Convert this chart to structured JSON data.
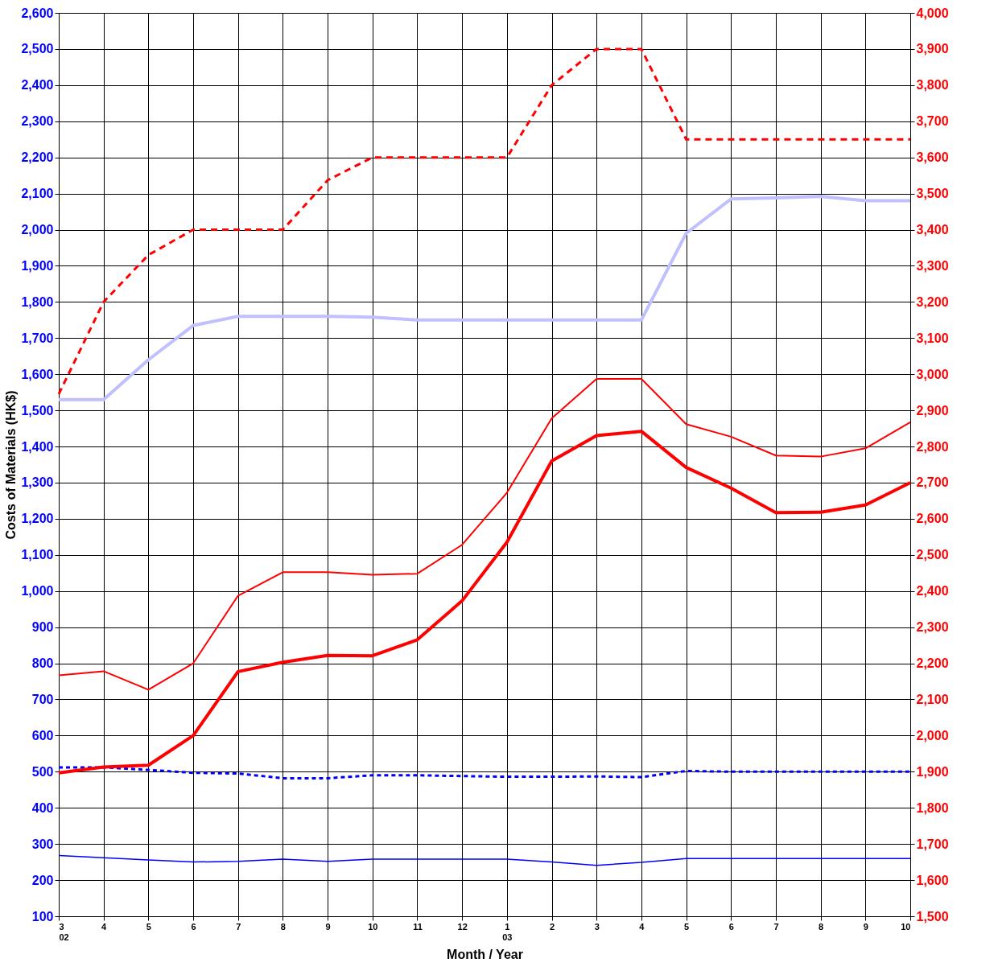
{
  "chart_data": {
    "type": "line",
    "xlabel": "Month / Year",
    "ylabel": "Costs of Materials (HK$)",
    "categories": [
      "3\n02",
      "4",
      "5",
      "6",
      "7",
      "8",
      "9",
      "10",
      "11",
      "12",
      "1\n03",
      "2",
      "3",
      "4",
      "5",
      "6",
      "7",
      "8",
      "9",
      "10"
    ],
    "ylim": [
      100,
      2600
    ],
    "yticks": [
      100,
      200,
      300,
      400,
      500,
      600,
      700,
      800,
      900,
      {
        "value": 1000,
        "label": "1,000"
      },
      {
        "value": 1100,
        "label": "1,100"
      },
      {
        "value": 1200,
        "label": "1,200"
      },
      {
        "value": 1300,
        "label": "1,300"
      },
      {
        "value": 1400,
        "label": "1,400"
      },
      {
        "value": 1500,
        "label": "1,500"
      },
      {
        "value": 1600,
        "label": "1,600"
      },
      {
        "value": 1700,
        "label": "1,700"
      },
      {
        "value": 1800,
        "label": "1,800"
      },
      {
        "value": 1900,
        "label": "1,900"
      },
      {
        "value": 2000,
        "label": "2,000"
      },
      {
        "value": 2100,
        "label": "2,100"
      },
      {
        "value": 2200,
        "label": "2,200"
      },
      {
        "value": 2300,
        "label": "2,300"
      },
      {
        "value": 2400,
        "label": "2,400"
      },
      {
        "value": 2500,
        "label": "2,500"
      },
      {
        "value": 2600,
        "label": "2,600"
      }
    ],
    "y2lim": [
      1500,
      4000
    ],
    "y2ticks": [
      {
        "value": 1500,
        "label": "1,500"
      },
      {
        "value": 1600,
        "label": "1,600"
      },
      {
        "value": 1700,
        "label": "1,700"
      },
      {
        "value": 1800,
        "label": "1,800"
      },
      {
        "value": 1900,
        "label": "1,900"
      },
      {
        "value": 2000,
        "label": "2,000"
      },
      {
        "value": 2100,
        "label": "2,100"
      },
      {
        "value": 2200,
        "label": "2,200"
      },
      {
        "value": 2300,
        "label": "2,300"
      },
      {
        "value": 2400,
        "label": "2,400"
      },
      {
        "value": 2500,
        "label": "2,500"
      },
      {
        "value": 2600,
        "label": "2,600"
      },
      {
        "value": 2700,
        "label": "2,700"
      },
      {
        "value": 2800,
        "label": "2,800"
      },
      {
        "value": 2900,
        "label": "2,900"
      },
      {
        "value": 3000,
        "label": "3,000"
      },
      {
        "value": 3100,
        "label": "3,100"
      },
      {
        "value": 3200,
        "label": "3,200"
      },
      {
        "value": 3300,
        "label": "3,300"
      },
      {
        "value": 3400,
        "label": "3,400"
      },
      {
        "value": 3500,
        "label": "3,500"
      },
      {
        "value": 3600,
        "label": "3,600"
      },
      {
        "value": 3700,
        "label": "3,700"
      },
      {
        "value": 3800,
        "label": "3,800"
      },
      {
        "value": 3900,
        "label": "3,900"
      },
      {
        "value": 4000,
        "label": "4,000"
      }
    ],
    "grid": true,
    "marker": "none",
    "series": [
      {
        "color": "#ff0000",
        "axis": "y2",
        "line_style": "dashed",
        "values": [
          2945,
          3200,
          3330,
          3400,
          3400,
          3400,
          3537,
          3600,
          3600,
          3600,
          3600,
          3800,
          3900,
          3900,
          3650,
          3650,
          3650,
          3650,
          3650,
          3650
        ]
      },
      {
        "color": "#c0c0ff",
        "line_style": "solid",
        "values": [
          1530,
          1530,
          1640,
          1735,
          1760,
          1760,
          1760,
          1758,
          1750,
          1750,
          1750,
          1750,
          1750,
          1750,
          1990,
          2085,
          2088,
          2092,
          2080,
          2080
        ]
      },
      {
        "color": "#ff0000",
        "axis": "y2",
        "line_style": "solid",
        "values": [
          2167,
          2178,
          2127,
          2200,
          2387,
          2452,
          2452,
          2445,
          2448,
          2528,
          2672,
          2878,
          2987,
          2987,
          2862,
          2827,
          2775,
          2772,
          2795,
          2867
        ]
      },
      {
        "color": "#ff0000",
        "axis": "y2",
        "line_style": "solid",
        "values": [
          1897,
          1913,
          1918,
          2000,
          2177,
          2203,
          2222,
          2221,
          2265,
          2373,
          2535,
          2760,
          2830,
          2842,
          2742,
          2685,
          2617,
          2618,
          2638,
          2700
        ]
      },
      {
        "color": "#0000ff",
        "line_style": "dotted",
        "values": [
          512,
          512,
          505,
          497,
          495,
          482,
          482,
          490,
          490,
          488,
          486,
          486,
          487,
          485,
          502,
          500,
          500,
          500,
          500,
          500
        ]
      },
      {
        "color": "#0000ff",
        "line_style": "solid",
        "values": [
          268,
          262,
          256,
          250,
          252,
          258,
          252,
          258,
          258,
          258,
          258,
          250,
          241,
          249,
          260,
          260,
          260,
          260,
          260,
          260
        ]
      }
    ]
  }
}
